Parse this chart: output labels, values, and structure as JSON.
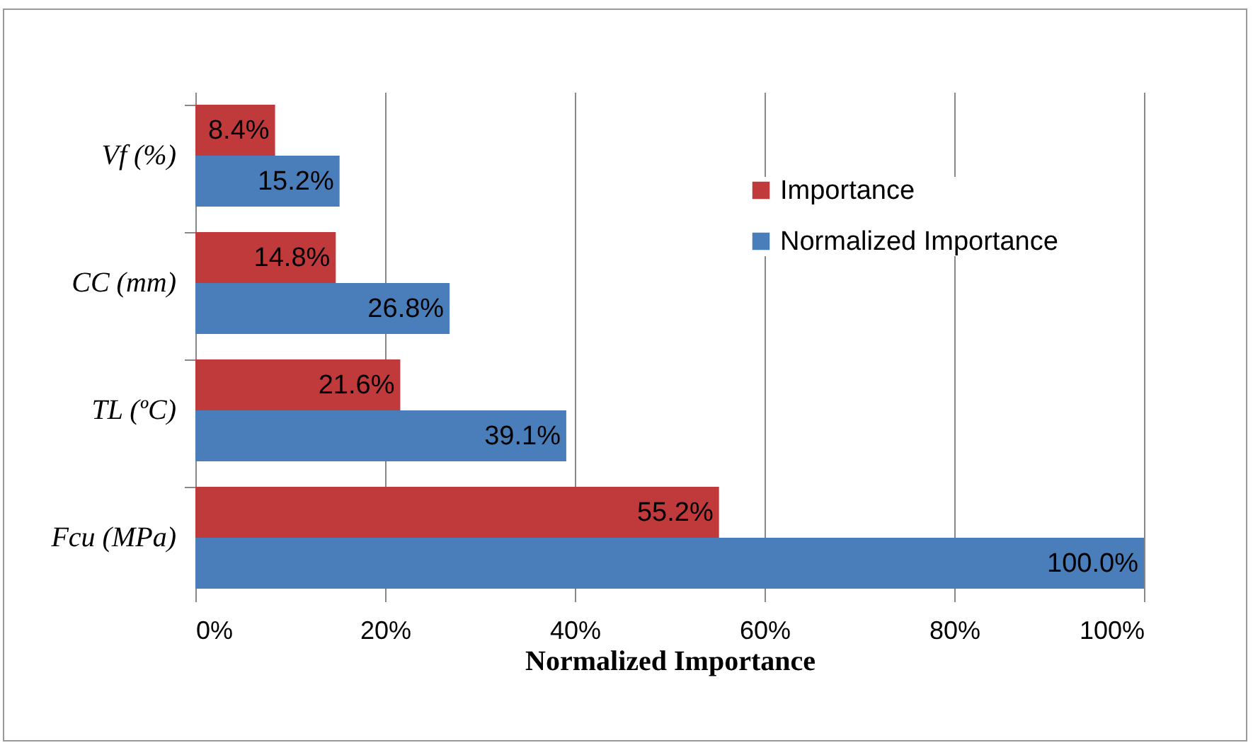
{
  "chart_data": {
    "type": "bar",
    "orientation": "horizontal",
    "xlabel": "Normalized Importance",
    "categories": [
      "Vf (%)",
      "CC (mm)",
      "TL (ºC)",
      "Fcu (MPa)"
    ],
    "series": [
      {
        "name": "Importance",
        "color": "#c0393b",
        "values": [
          8.4,
          14.8,
          21.6,
          55.2
        ],
        "value_labels": [
          "8.4%",
          "14.8%",
          "21.6%",
          "55.2%"
        ]
      },
      {
        "name": "Normalized Importance",
        "color": "#4a7ebb",
        "values": [
          15.2,
          26.8,
          39.1,
          100.0
        ],
        "value_labels": [
          "15.2%",
          "26.8%",
          "39.1%",
          "100.0%"
        ]
      }
    ],
    "xlim": [
      0,
      100
    ],
    "xticks": [
      {
        "value": 0,
        "label": "0%"
      },
      {
        "value": 20,
        "label": "20%"
      },
      {
        "value": 40,
        "label": "40%"
      },
      {
        "value": 60,
        "label": "60%"
      },
      {
        "value": 80,
        "label": "80%"
      },
      {
        "value": 100,
        "label": "100%"
      }
    ],
    "grid": "x",
    "legend": "top right"
  }
}
